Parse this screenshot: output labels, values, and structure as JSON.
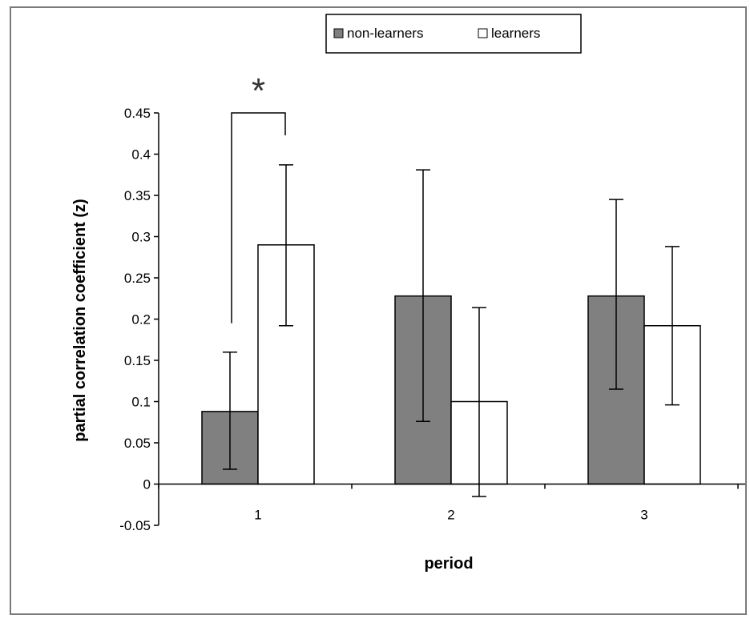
{
  "chart_data": {
    "type": "bar",
    "title": "",
    "xlabel": "period",
    "ylabel": "partial correlation coefficient (z)",
    "categories": [
      "1",
      "2",
      "3"
    ],
    "ylim": [
      -0.05,
      0.45
    ],
    "yticks": [
      -0.05,
      0,
      0.05,
      0.1,
      0.15,
      0.2,
      0.25,
      0.3,
      0.35,
      0.4,
      0.45
    ],
    "ytick_labels": [
      "-0.05",
      "0",
      "0.05",
      "0.1",
      "0.15",
      "0.2",
      "0.25",
      "0.3",
      "0.35",
      "0.4",
      "0.45"
    ],
    "series": [
      {
        "name": "non-learners",
        "values": [
          0.088,
          0.228,
          0.228
        ],
        "err_low": [
          0.018,
          0.076,
          0.115
        ],
        "err_high": [
          0.16,
          0.381,
          0.345
        ],
        "color": "#808080"
      },
      {
        "name": "learners",
        "values": [
          0.29,
          0.1,
          0.192
        ],
        "err_low": [
          0.192,
          -0.015,
          0.096
        ],
        "err_high": [
          0.387,
          0.214,
          0.288
        ],
        "color": "#ffffff"
      }
    ],
    "legend_position": "top-right",
    "grid": false,
    "annotations": [
      {
        "text": "*",
        "category": "1"
      }
    ]
  }
}
